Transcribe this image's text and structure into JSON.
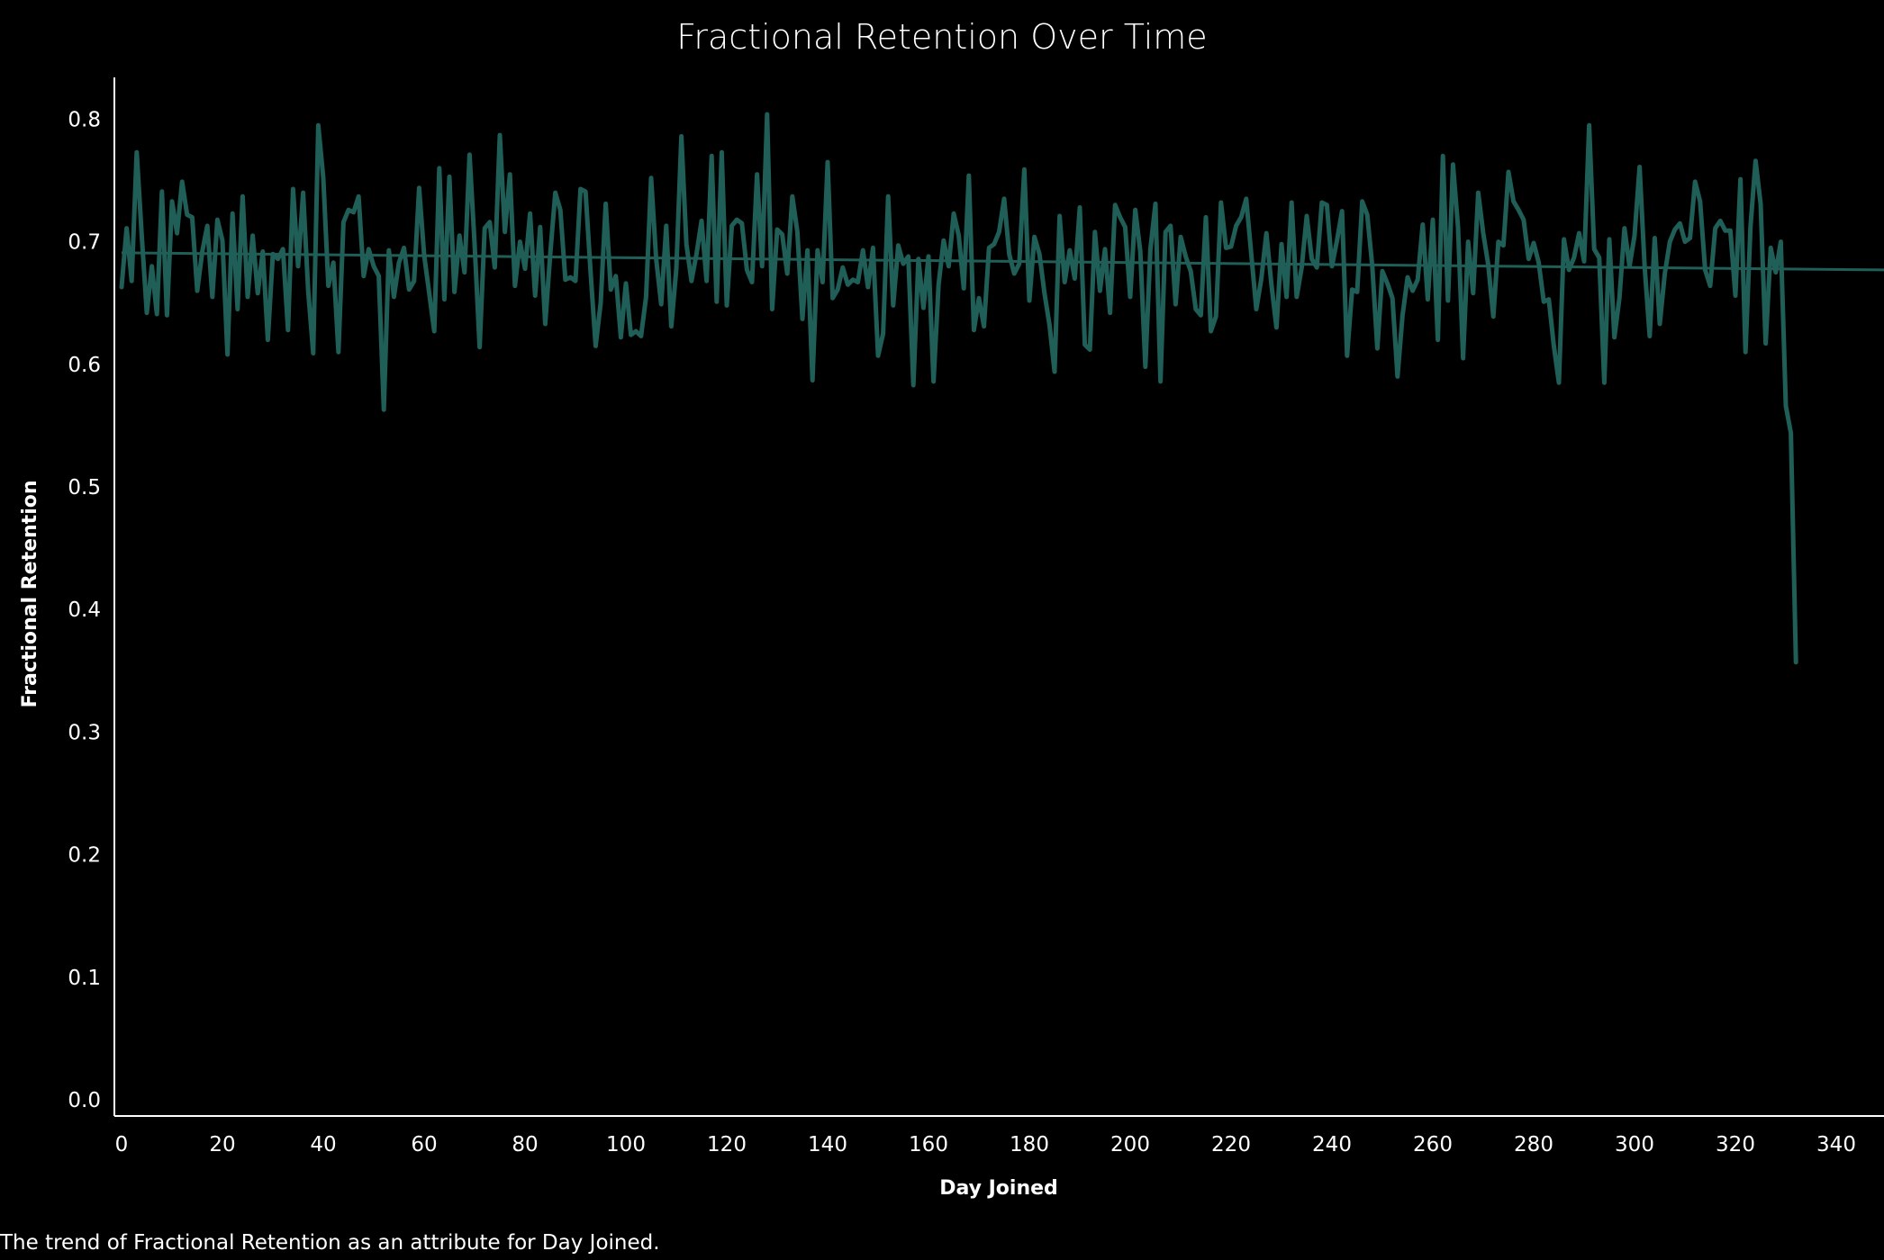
{
  "caption": "The trend of Fractional Retention as an attribute for Day Joined.",
  "chart_data": {
    "type": "line",
    "title": "Fractional Retention Over Time",
    "xlabel": "Day Joined",
    "ylabel": "Fractional Retention",
    "xlim": [
      -1,
      350
    ],
    "ylim": [
      0,
      0.85
    ],
    "x_ticks": [
      0,
      20,
      40,
      60,
      80,
      100,
      120,
      140,
      160,
      180,
      200,
      220,
      240,
      260,
      280,
      300,
      320,
      340
    ],
    "x_tick_labels": [
      "0",
      "20",
      "40",
      "60",
      "80",
      "100",
      "120",
      "140",
      "160",
      "180",
      "200",
      "220",
      "240",
      "260",
      "280",
      "300",
      "320",
      "340"
    ],
    "y_ticks": [
      0,
      0.1,
      0.2,
      0.3,
      0.4,
      0.5,
      0.6,
      0.7,
      0.8
    ],
    "y_tick_labels": [
      "0.0",
      "0.1",
      "0.2",
      "0.3",
      "0.4",
      "0.5",
      "0.6",
      "0.7",
      "0.8"
    ],
    "grid": false,
    "colors": {
      "series": "#1f5f57",
      "trend": "#1f5f57",
      "axis": "#ffffff",
      "background": "#000000"
    },
    "series": [
      {
        "values": [
          0.663,
          0.711,
          0.668,
          0.773,
          0.705,
          0.642,
          0.68,
          0.641,
          0.741,
          0.64,
          0.733,
          0.707,
          0.749,
          0.722,
          0.72,
          0.66,
          0.692,
          0.713,
          0.655,
          0.718,
          0.701,
          0.608,
          0.723,
          0.645,
          0.737,
          0.655,
          0.705,
          0.658,
          0.692,
          0.62,
          0.69,
          0.686,
          0.694,
          0.628,
          0.743,
          0.68,
          0.74,
          0.66,
          0.609,
          0.795,
          0.752,
          0.664,
          0.683,
          0.61,
          0.716,
          0.726,
          0.724,
          0.737,
          0.672,
          0.694,
          0.68,
          0.672,
          0.563,
          0.693,
          0.655,
          0.683,
          0.695,
          0.661,
          0.668,
          0.744,
          0.689,
          0.658,
          0.627,
          0.76,
          0.653,
          0.753,
          0.659,
          0.705,
          0.675,
          0.771,
          0.698,
          0.614,
          0.711,
          0.716,
          0.679,
          0.787,
          0.708,
          0.755,
          0.664,
          0.7,
          0.678,
          0.723,
          0.656,
          0.712,
          0.633,
          0.69,
          0.74,
          0.726,
          0.669,
          0.671,
          0.668,
          0.743,
          0.741,
          0.675,
          0.615,
          0.65,
          0.731,
          0.661,
          0.672,
          0.622,
          0.666,
          0.624,
          0.627,
          0.623,
          0.655,
          0.752,
          0.686,
          0.649,
          0.713,
          0.631,
          0.678,
          0.786,
          0.698,
          0.668,
          0.69,
          0.717,
          0.668,
          0.77,
          0.651,
          0.773,
          0.648,
          0.713,
          0.718,
          0.715,
          0.677,
          0.667,
          0.755,
          0.68,
          0.804,
          0.645,
          0.71,
          0.706,
          0.674,
          0.737,
          0.708,
          0.637,
          0.693,
          0.587,
          0.693,
          0.667,
          0.765,
          0.654,
          0.661,
          0.679,
          0.665,
          0.669,
          0.667,
          0.693,
          0.663,
          0.695,
          0.607,
          0.625,
          0.737,
          0.648,
          0.697,
          0.682,
          0.688,
          0.583,
          0.686,
          0.646,
          0.688,
          0.586,
          0.665,
          0.701,
          0.68,
          0.723,
          0.705,
          0.662,
          0.754,
          0.628,
          0.654,
          0.631,
          0.695,
          0.698,
          0.708,
          0.735,
          0.69,
          0.674,
          0.682,
          0.759,
          0.652,
          0.704,
          0.69,
          0.658,
          0.632,
          0.594,
          0.721,
          0.667,
          0.693,
          0.67,
          0.728,
          0.616,
          0.612,
          0.708,
          0.66,
          0.694,
          0.642,
          0.73,
          0.72,
          0.712,
          0.655,
          0.726,
          0.692,
          0.598,
          0.694,
          0.731,
          0.586,
          0.708,
          0.713,
          0.649,
          0.704,
          0.688,
          0.676,
          0.645,
          0.64,
          0.72,
          0.627,
          0.639,
          0.732,
          0.695,
          0.696,
          0.713,
          0.72,
          0.735,
          0.69,
          0.645,
          0.67,
          0.707,
          0.665,
          0.63,
          0.698,
          0.655,
          0.732,
          0.655,
          0.679,
          0.721,
          0.686,
          0.679,
          0.732,
          0.73,
          0.68,
          0.701,
          0.725,
          0.607,
          0.661,
          0.659,
          0.733,
          0.722,
          0.68,
          0.613,
          0.676,
          0.666,
          0.654,
          0.59,
          0.64,
          0.671,
          0.66,
          0.669,
          0.714,
          0.653,
          0.718,
          0.62,
          0.77,
          0.652,
          0.763,
          0.712,
          0.605,
          0.7,
          0.658,
          0.74,
          0.707,
          0.681,
          0.639,
          0.7,
          0.697,
          0.757,
          0.733,
          0.726,
          0.718,
          0.686,
          0.699,
          0.683,
          0.651,
          0.653,
          0.615,
          0.585,
          0.702,
          0.677,
          0.687,
          0.707,
          0.684,
          0.795,
          0.694,
          0.687,
          0.585,
          0.702,
          0.622,
          0.654,
          0.711,
          0.68,
          0.705,
          0.761,
          0.68,
          0.623,
          0.703,
          0.633,
          0.674,
          0.7,
          0.71,
          0.715,
          0.7,
          0.703,
          0.749,
          0.733,
          0.677,
          0.664,
          0.711,
          0.717,
          0.709,
          0.709,
          0.656,
          0.751,
          0.61,
          0.713,
          0.766,
          0.731,
          0.617,
          0.695,
          0.675,
          0.7,
          0.566,
          0.544,
          0.357
        ]
      }
    ],
    "trend_line": {
      "x": [
        0,
        350
      ],
      "y": [
        0.691,
        0.677
      ]
    }
  }
}
